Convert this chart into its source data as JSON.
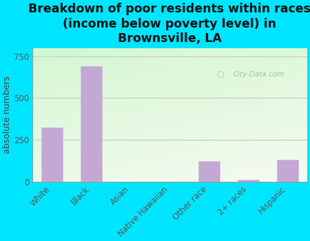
{
  "title": "Breakdown of poor residents within races\n(income below poverty level) in\nBrownsville, LA",
  "categories": [
    "White",
    "Black",
    "Asian",
    "Native Hawaiian",
    "Other race",
    "2+ races",
    "Hispanic"
  ],
  "values": [
    325,
    690,
    0,
    0,
    120,
    10,
    130
  ],
  "bar_color": "#c4a8d4",
  "ylabel": "absolute numbers",
  "yticks": [
    0,
    250,
    500,
    750
  ],
  "ylim": [
    0,
    800
  ],
  "background_outer": "#00e5ff",
  "grid_color": "#bbbbbb",
  "watermark": "City-Data.com",
  "title_fontsize": 12.5,
  "ylabel_fontsize": 9,
  "tick_fontsize": 8.5
}
